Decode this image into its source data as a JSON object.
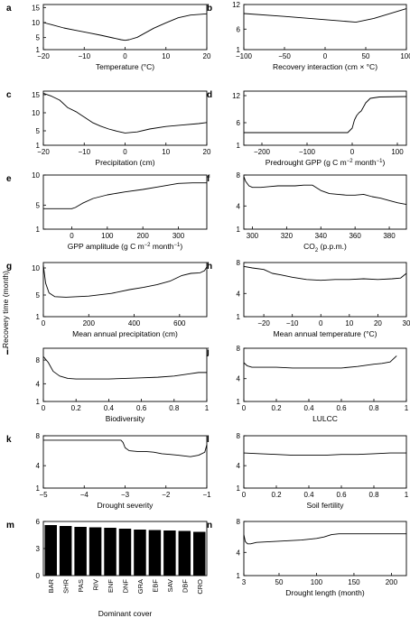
{
  "figure": {
    "y_axis_label": "Recovery time (month)"
  },
  "chart_data": [
    {
      "id": "a",
      "type": "line",
      "xlabel": "Temperature (°C)",
      "xlim": [
        -20,
        20
      ],
      "ylim": [
        1,
        16
      ],
      "xticks": [
        -20,
        -10,
        0,
        10,
        20
      ],
      "yticks": [
        1,
        5,
        10,
        15
      ],
      "x": [
        -20,
        -18,
        -15,
        -12,
        -9,
        -6,
        -3,
        -1,
        0,
        1,
        3,
        5,
        7,
        10,
        13,
        16,
        19,
        20
      ],
      "y": [
        10,
        9.3,
        8.2,
        7.4,
        6.6,
        5.8,
        4.9,
        4.3,
        4.1,
        4.3,
        5.1,
        6.6,
        8.1,
        9.9,
        11.6,
        12.5,
        12.8,
        12.9
      ]
    },
    {
      "id": "b",
      "type": "line",
      "xlabel": "Recovery interaction (cm × °C)",
      "xlim": [
        -100,
        100
      ],
      "ylim": [
        1,
        12
      ],
      "xticks": [
        -100,
        -50,
        0,
        50,
        100
      ],
      "yticks": [
        1,
        6,
        12
      ],
      "x": [
        -100,
        -50,
        0,
        38,
        60,
        100
      ],
      "y": [
        9.8,
        9.1,
        8.3,
        7.7,
        8.6,
        11.0
      ]
    },
    {
      "id": "c",
      "type": "line",
      "xlabel": "Precipitation (cm)",
      "xlim": [
        -20,
        20
      ],
      "ylim": [
        1,
        16
      ],
      "xticks": [
        -20,
        -10,
        0,
        10,
        20
      ],
      "yticks": [
        1,
        5,
        10,
        15
      ],
      "x": [
        -20,
        -18,
        -16,
        -14,
        -12,
        -10,
        -8,
        -6,
        -4,
        -2,
        0,
        3,
        6,
        10,
        14,
        18,
        20
      ],
      "y": [
        15.4,
        14.6,
        13.5,
        11.4,
        10.3,
        8.8,
        7.3,
        6.3,
        5.5,
        4.9,
        4.4,
        4.7,
        5.5,
        6.2,
        6.6,
        7.0,
        7.3
      ]
    },
    {
      "id": "d",
      "type": "line",
      "xlabel": "Predrought GPP (g C m−2 month−1)",
      "xlim": [
        -240,
        120
      ],
      "ylim": [
        1,
        13
      ],
      "xticks": [
        -200,
        -100,
        0,
        100
      ],
      "yticks": [
        1,
        6,
        12
      ],
      "x": [
        -240,
        -100,
        -10,
        0,
        5,
        10,
        15,
        20,
        30,
        40,
        60,
        120
      ],
      "y": [
        3.8,
        3.8,
        3.8,
        4.8,
        6.6,
        7.6,
        8.2,
        8.6,
        10.4,
        11.4,
        11.7,
        11.8
      ]
    },
    {
      "id": "e",
      "type": "line",
      "xlabel": "GPP amplitude (g C m−2 month−1)",
      "xlim": [
        -80,
        380
      ],
      "ylim": [
        1,
        10
      ],
      "xticks": [
        0,
        100,
        200,
        300
      ],
      "yticks": [
        1,
        5,
        10
      ],
      "x": [
        -80,
        -10,
        0,
        10,
        30,
        60,
        100,
        150,
        200,
        250,
        300,
        340,
        380
      ],
      "y": [
        4.4,
        4.4,
        4.4,
        4.6,
        5.3,
        6.1,
        6.7,
        7.2,
        7.6,
        8.1,
        8.6,
        8.7,
        8.7
      ]
    },
    {
      "id": "f",
      "type": "line",
      "xlabel": "CO2 (p.p.m.)",
      "xlim": [
        295,
        390
      ],
      "ylim": [
        1,
        8
      ],
      "xticks": [
        300,
        320,
        340,
        360,
        380
      ],
      "yticks": [
        1,
        4,
        8
      ],
      "x": [
        295,
        296,
        298,
        300,
        305,
        310,
        315,
        320,
        325,
        330,
        335,
        340,
        345,
        350,
        355,
        360,
        365,
        370,
        375,
        380,
        385,
        390
      ],
      "y": [
        7.8,
        7.2,
        6.6,
        6.4,
        6.4,
        6.5,
        6.6,
        6.6,
        6.6,
        6.7,
        6.7,
        6.0,
        5.6,
        5.5,
        5.4,
        5.4,
        5.5,
        5.2,
        5.0,
        4.7,
        4.4,
        4.2
      ]
    },
    {
      "id": "g",
      "type": "line",
      "xlabel": "Mean annual precipitation (cm)",
      "xlim": [
        0,
        720
      ],
      "ylim": [
        1,
        11
      ],
      "xticks": [
        0,
        200,
        400,
        600
      ],
      "yticks": [
        1,
        5,
        10
      ],
      "x": [
        0,
        10,
        25,
        50,
        100,
        200,
        300,
        380,
        440,
        500,
        560,
        610,
        650,
        690,
        710,
        720
      ],
      "y": [
        10.5,
        7.2,
        5.4,
        4.7,
        4.6,
        4.8,
        5.3,
        6.0,
        6.4,
        6.9,
        7.6,
        8.6,
        9.0,
        9.1,
        9.5,
        10.2
      ]
    },
    {
      "id": "h",
      "type": "line",
      "xlabel": "Mean annual temperature (°C)",
      "xlim": [
        -27,
        30
      ],
      "ylim": [
        1,
        8
      ],
      "xticks": [
        -20,
        -10,
        0,
        10,
        20,
        30
      ],
      "yticks": [
        1,
        4,
        8
      ],
      "x": [
        -27,
        -24,
        -20,
        -17,
        -14,
        -10,
        -5,
        0,
        5,
        10,
        15,
        20,
        25,
        28,
        30
      ],
      "y": [
        7.5,
        7.3,
        7.1,
        6.6,
        6.4,
        6.1,
        5.8,
        5.7,
        5.8,
        5.8,
        5.9,
        5.8,
        5.9,
        6.0,
        6.6
      ]
    },
    {
      "id": "i",
      "type": "line",
      "xlabel": "Biodiversity",
      "xlim": [
        0,
        1
      ],
      "ylim": [
        1,
        10
      ],
      "xticks": [
        0,
        0.2,
        0.4,
        0.6,
        0.8,
        1
      ],
      "yticks": [
        1,
        4,
        8
      ],
      "x": [
        0,
        0.03,
        0.06,
        0.1,
        0.15,
        0.2,
        0.3,
        0.4,
        0.5,
        0.6,
        0.7,
        0.8,
        0.9,
        0.95,
        1
      ],
      "y": [
        8.6,
        7.6,
        6.1,
        5.3,
        4.9,
        4.8,
        4.8,
        4.8,
        4.9,
        5.0,
        5.1,
        5.3,
        5.7,
        5.9,
        5.9
      ]
    },
    {
      "id": "j",
      "type": "line",
      "xlabel": "LULCC",
      "xlim": [
        0,
        1
      ],
      "ylim": [
        1,
        8
      ],
      "xticks": [
        0,
        0.2,
        0.4,
        0.6,
        0.8,
        1
      ],
      "yticks": [
        1,
        4,
        8
      ],
      "x": [
        0,
        0.02,
        0.05,
        0.1,
        0.2,
        0.3,
        0.4,
        0.5,
        0.6,
        0.7,
        0.8,
        0.85,
        0.9,
        0.92,
        0.94
      ],
      "y": [
        6.1,
        5.7,
        5.5,
        5.5,
        5.5,
        5.4,
        5.4,
        5.4,
        5.4,
        5.6,
        5.9,
        6.0,
        6.2,
        6.6,
        7.0
      ]
    },
    {
      "id": "k",
      "type": "line",
      "xlabel": "Drought severity",
      "xlim": [
        -5,
        -1
      ],
      "ylim": [
        1,
        8
      ],
      "xticks": [
        -5,
        -4,
        -3,
        -2,
        -1
      ],
      "yticks": [
        1,
        4,
        8
      ],
      "x": [
        -5,
        -4.5,
        -4,
        -3.5,
        -3.1,
        -3.05,
        -3.0,
        -2.9,
        -2.7,
        -2.5,
        -2.3,
        -2.1,
        -1.9,
        -1.7,
        -1.4,
        -1.2,
        -1.05,
        -1
      ],
      "y": [
        7.4,
        7.4,
        7.4,
        7.4,
        7.4,
        7.1,
        6.4,
        6.0,
        5.9,
        5.9,
        5.8,
        5.6,
        5.5,
        5.4,
        5.2,
        5.4,
        5.8,
        6.8
      ]
    },
    {
      "id": "l",
      "type": "line",
      "xlabel": "Soil fertility",
      "xlim": [
        0,
        1
      ],
      "ylim": [
        1,
        8
      ],
      "xticks": [
        0,
        0.2,
        0.4,
        0.6,
        0.8,
        1
      ],
      "yticks": [
        1,
        4,
        8
      ],
      "x": [
        0,
        0.1,
        0.2,
        0.3,
        0.4,
        0.5,
        0.6,
        0.7,
        0.8,
        0.9,
        1
      ],
      "y": [
        5.7,
        5.6,
        5.5,
        5.4,
        5.4,
        5.4,
        5.5,
        5.5,
        5.6,
        5.7,
        5.7
      ]
    },
    {
      "id": "m",
      "type": "bar",
      "xlabel": "Dominant cover",
      "ylim": [
        0,
        6
      ],
      "yticks": [
        0,
        3,
        6
      ],
      "categories": [
        "BAR",
        "SHR",
        "PAS",
        "RIV",
        "ENF",
        "DNF",
        "GRA",
        "EBF",
        "SAV",
        "DBF",
        "CRO"
      ],
      "values": [
        5.6,
        5.5,
        5.4,
        5.35,
        5.3,
        5.2,
        5.1,
        5.05,
        5.0,
        4.95,
        4.85
      ]
    },
    {
      "id": "n",
      "type": "line",
      "xlabel": "Drought length (month)",
      "xlim": [
        3,
        220
      ],
      "ylim": [
        1,
        8
      ],
      "xticks": [
        3,
        50,
        100,
        150,
        200
      ],
      "yticks": [
        1,
        4,
        8
      ],
      "x": [
        3,
        5,
        8,
        12,
        20,
        40,
        60,
        80,
        100,
        110,
        120,
        130,
        150,
        180,
        220
      ],
      "y": [
        6.3,
        5.4,
        5.1,
        5.1,
        5.3,
        5.4,
        5.5,
        5.6,
        5.8,
        6.0,
        6.3,
        6.4,
        6.4,
        6.4,
        6.4
      ]
    }
  ]
}
